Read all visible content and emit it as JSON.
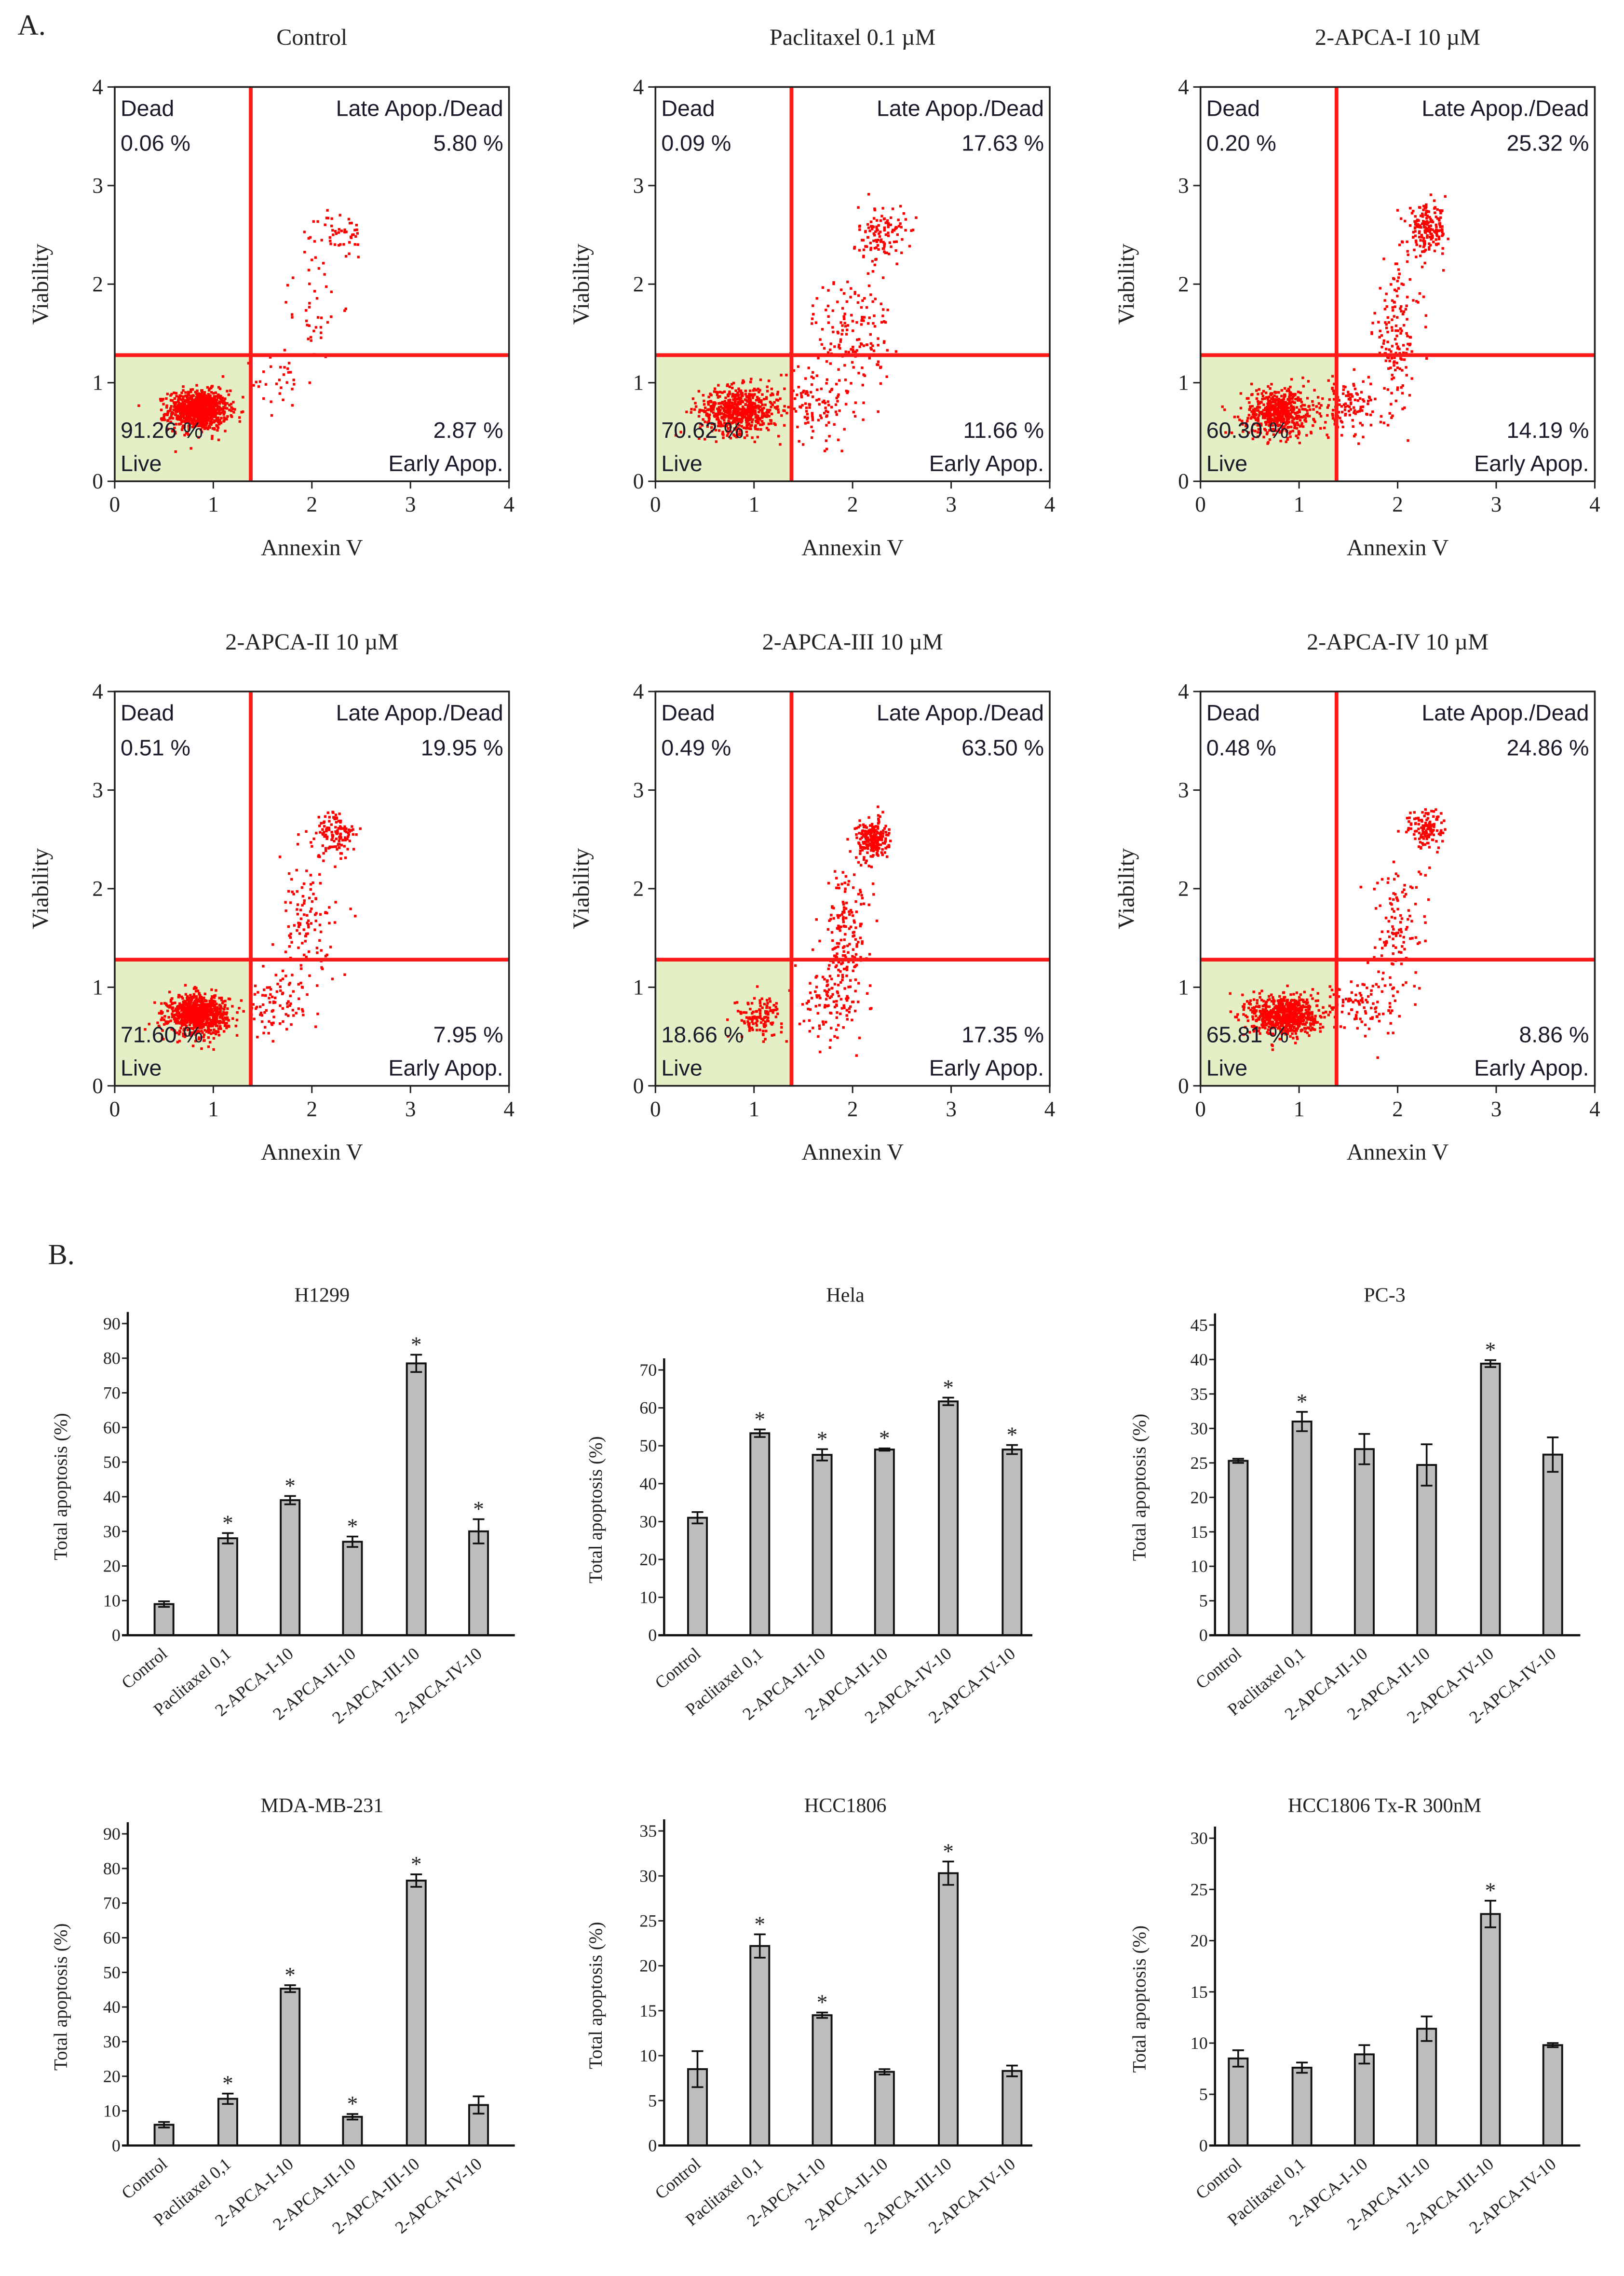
{
  "figure": {
    "panel_a_label": "A.",
    "panel_b_label": "B."
  },
  "chart_data": [
    {
      "type": "scatter",
      "title": "Control",
      "xlabel": "Annexin V",
      "ylabel": "Viability",
      "xlim": [
        0,
        4
      ],
      "ylim": [
        0,
        4
      ],
      "xticks": [
        0,
        1,
        2,
        3,
        4
      ],
      "yticks": [
        0,
        1,
        2,
        3,
        4
      ],
      "gate": {
        "x": 1.38,
        "y": 1.28
      },
      "point_color": "#ff0000",
      "live_fill": "#e4efc6",
      "quadrants": {
        "ul": {
          "label": "Dead",
          "value": "0.06 %"
        },
        "ur": {
          "label": "Late Apop./Dead",
          "value": "5.80 %"
        },
        "ll": {
          "label": "Live",
          "value": "91.26 %"
        },
        "lr": {
          "label": "Early Apop.",
          "value": "2.87 %"
        }
      },
      "clusters": [
        {
          "cx": 0.85,
          "cy": 0.72,
          "sx": 0.15,
          "sy": 0.1,
          "n": 900
        },
        {
          "cx": 1.7,
          "cy": 1.0,
          "sx": 0.15,
          "sy": 0.15,
          "n": 30
        },
        {
          "cx": 2.0,
          "cy": 1.8,
          "sx": 0.15,
          "sy": 0.3,
          "n": 40
        },
        {
          "cx": 2.3,
          "cy": 2.5,
          "sx": 0.12,
          "sy": 0.12,
          "n": 50
        }
      ]
    },
    {
      "type": "scatter",
      "title": "Paclitaxel 0.1 µM",
      "xlabel": "Annexin V",
      "ylabel": "Viability",
      "xlim": [
        0,
        4
      ],
      "ylim": [
        0,
        4
      ],
      "xticks": [
        0,
        1,
        2,
        3,
        4
      ],
      "yticks": [
        0,
        1,
        2,
        3,
        4
      ],
      "gate": {
        "x": 1.38,
        "y": 1.28
      },
      "point_color": "#ff0000",
      "live_fill": "#e4efc6",
      "quadrants": {
        "ul": {
          "label": "Dead",
          "value": "0.09 %"
        },
        "ur": {
          "label": "Late Apop./Dead",
          "value": "17.63 %"
        },
        "ll": {
          "label": "Live",
          "value": "70.62 %"
        },
        "lr": {
          "label": "Early Apop.",
          "value": "11.66 %"
        }
      },
      "clusters": [
        {
          "cx": 0.85,
          "cy": 0.72,
          "sx": 0.2,
          "sy": 0.12,
          "n": 600
        },
        {
          "cx": 1.6,
          "cy": 0.8,
          "sx": 0.2,
          "sy": 0.2,
          "n": 120
        },
        {
          "cx": 2.0,
          "cy": 1.5,
          "sx": 0.2,
          "sy": 0.3,
          "n": 150
        },
        {
          "cx": 2.3,
          "cy": 2.5,
          "sx": 0.12,
          "sy": 0.15,
          "n": 120
        }
      ]
    },
    {
      "type": "scatter",
      "title": "2-APCA-I 10 µM",
      "xlabel": "Annexin V",
      "ylabel": "Viability",
      "xlim": [
        0,
        4
      ],
      "ylim": [
        0,
        4
      ],
      "xticks": [
        0,
        1,
        2,
        3,
        4
      ],
      "yticks": [
        0,
        1,
        2,
        3,
        4
      ],
      "gate": {
        "x": 1.38,
        "y": 1.28
      },
      "point_color": "#ff0000",
      "live_fill": "#e4efc6",
      "quadrants": {
        "ul": {
          "label": "Dead",
          "value": "0.20 %"
        },
        "ur": {
          "label": "Late Apop./Dead",
          "value": "25.32 %"
        },
        "ll": {
          "label": "Live",
          "value": "60.30 %"
        },
        "lr": {
          "label": "Early Apop.",
          "value": "14.19 %"
        }
      },
      "clusters": [
        {
          "cx": 0.8,
          "cy": 0.7,
          "sx": 0.18,
          "sy": 0.12,
          "n": 550
        },
        {
          "cx": 1.5,
          "cy": 0.75,
          "sx": 0.2,
          "sy": 0.15,
          "n": 120
        },
        {
          "cx": 2.0,
          "cy": 1.5,
          "sx": 0.12,
          "sy": 0.35,
          "n": 150
        },
        {
          "cx": 2.3,
          "cy": 2.55,
          "sx": 0.1,
          "sy": 0.12,
          "n": 180
        }
      ]
    },
    {
      "type": "scatter",
      "title": "2-APCA-II 10 µM",
      "xlabel": "Annexin V",
      "ylabel": "Viability",
      "xlim": [
        0,
        4
      ],
      "ylim": [
        0,
        4
      ],
      "xticks": [
        0,
        1,
        2,
        3,
        4
      ],
      "yticks": [
        0,
        1,
        2,
        3,
        4
      ],
      "gate": {
        "x": 1.38,
        "y": 1.28
      },
      "point_color": "#ff0000",
      "live_fill": "#e4efc6",
      "quadrants": {
        "ul": {
          "label": "Dead",
          "value": "0.51 %"
        },
        "ur": {
          "label": "Late Apop./Dead",
          "value": "19.95 %"
        },
        "ll": {
          "label": "Live",
          "value": "71.60 %"
        },
        "lr": {
          "label": "Early Apop.",
          "value": "7.95 %"
        }
      },
      "clusters": [
        {
          "cx": 0.85,
          "cy": 0.72,
          "sx": 0.15,
          "sy": 0.1,
          "n": 800
        },
        {
          "cx": 1.6,
          "cy": 0.8,
          "sx": 0.15,
          "sy": 0.15,
          "n": 80
        },
        {
          "cx": 1.95,
          "cy": 1.6,
          "sx": 0.15,
          "sy": 0.35,
          "n": 120
        },
        {
          "cx": 2.25,
          "cy": 2.55,
          "sx": 0.1,
          "sy": 0.12,
          "n": 120
        }
      ]
    },
    {
      "type": "scatter",
      "title": "2-APCA-III 10 µM",
      "xlabel": "Annexin V",
      "ylabel": "Viability",
      "xlim": [
        0,
        4
      ],
      "ylim": [
        0,
        4
      ],
      "xticks": [
        0,
        1,
        2,
        3,
        4
      ],
      "yticks": [
        0,
        1,
        2,
        3,
        4
      ],
      "gate": {
        "x": 1.38,
        "y": 1.28
      },
      "point_color": "#ff0000",
      "live_fill": "#e4efc6",
      "quadrants": {
        "ul": {
          "label": "Dead",
          "value": "0.49 %"
        },
        "ur": {
          "label": "Late Apop./Dead",
          "value": "63.50 %"
        },
        "ll": {
          "label": "Live",
          "value": "18.66 %"
        },
        "lr": {
          "label": "Early Apop.",
          "value": "17.35 %"
        }
      },
      "clusters": [
        {
          "cx": 1.05,
          "cy": 0.7,
          "sx": 0.12,
          "sy": 0.1,
          "n": 120
        },
        {
          "cx": 1.8,
          "cy": 0.9,
          "sx": 0.15,
          "sy": 0.2,
          "n": 120
        },
        {
          "cx": 1.95,
          "cy": 1.6,
          "sx": 0.12,
          "sy": 0.3,
          "n": 150
        },
        {
          "cx": 2.2,
          "cy": 2.5,
          "sx": 0.08,
          "sy": 0.1,
          "n": 220
        }
      ]
    },
    {
      "type": "scatter",
      "title": "2-APCA-IV 10 µM",
      "xlabel": "Annexin V",
      "ylabel": "Viability",
      "xlim": [
        0,
        4
      ],
      "ylim": [
        0,
        4
      ],
      "xticks": [
        0,
        1,
        2,
        3,
        4
      ],
      "yticks": [
        0,
        1,
        2,
        3,
        4
      ],
      "gate": {
        "x": 1.38,
        "y": 1.28
      },
      "point_color": "#ff0000",
      "live_fill": "#e4efc6",
      "quadrants": {
        "ul": {
          "label": "Dead",
          "value": "0.48 %"
        },
        "ur": {
          "label": "Late Apop./Dead",
          "value": "24.86 %"
        },
        "ll": {
          "label": "Live",
          "value": "65.81 %"
        },
        "lr": {
          "label": "Early Apop.",
          "value": "8.86 %"
        }
      },
      "clusters": [
        {
          "cx": 0.85,
          "cy": 0.72,
          "sx": 0.17,
          "sy": 0.1,
          "n": 700
        },
        {
          "cx": 1.6,
          "cy": 0.8,
          "sx": 0.2,
          "sy": 0.15,
          "n": 100
        },
        {
          "cx": 2.0,
          "cy": 1.6,
          "sx": 0.15,
          "sy": 0.35,
          "n": 120
        },
        {
          "cx": 2.3,
          "cy": 2.6,
          "sx": 0.1,
          "sy": 0.1,
          "n": 120
        }
      ]
    },
    {
      "type": "bar",
      "title": "H1299",
      "ylabel": "Total apoptosis (%)",
      "ylim": [
        0,
        90
      ],
      "yticks": [
        0,
        10,
        20,
        30,
        40,
        50,
        60,
        70,
        80,
        90
      ],
      "bar_color": "#bdbdbd",
      "categories": [
        "Control",
        "Paclitaxel 0,1",
        "2-APCA-I-10",
        "2-APCA-II-10",
        "2-APCA-III-10",
        "2-APCA-IV-10"
      ],
      "values": [
        9,
        28,
        39,
        27,
        78.5,
        30
      ],
      "errors": [
        0.8,
        1.5,
        1.2,
        1.5,
        2.5,
        3.5
      ],
      "significant": [
        false,
        true,
        true,
        true,
        true,
        true
      ],
      "significance_mark": "*"
    },
    {
      "type": "bar",
      "title": "Hela",
      "ylabel": "Total apoptosis (%)",
      "ylim": [
        0,
        70
      ],
      "yticks": [
        0,
        10,
        20,
        30,
        40,
        50,
        60,
        70
      ],
      "bar_color": "#bdbdbd",
      "categories": [
        "Control",
        "Paclitaxel 0,1",
        "2-APCA-II-10",
        "2-APCA-II-10",
        "2-APCA-IV-10",
        "2-APCA-IV-10"
      ],
      "values": [
        31,
        53.3,
        47.6,
        49,
        61.7,
        49
      ],
      "errors": [
        1.5,
        1,
        1.5,
        0.3,
        1,
        1.2
      ],
      "significant": [
        false,
        true,
        true,
        true,
        true,
        true
      ],
      "significance_mark": "*"
    },
    {
      "type": "bar",
      "title": "PC-3",
      "ylabel": "Total apoptosis (%)",
      "ylim": [
        0,
        45
      ],
      "yticks": [
        0,
        5,
        10,
        15,
        20,
        25,
        30,
        35,
        40,
        45
      ],
      "bar_color": "#bdbdbd",
      "categories": [
        "Control",
        "Paclitaxel 0,1",
        "2-APCA-II-10",
        "2-APCA-II-10",
        "2-APCA-IV-10",
        "2-APCA-IV-10"
      ],
      "values": [
        25.3,
        31,
        27,
        24.7,
        39.4,
        26.2
      ],
      "errors": [
        0.3,
        1.4,
        2.2,
        3,
        0.5,
        2.5
      ],
      "significant": [
        false,
        true,
        false,
        false,
        true,
        false
      ],
      "significance_mark": "*"
    },
    {
      "type": "bar",
      "title": "MDA-MB-231",
      "ylabel": "Total apoptosis (%)",
      "ylim": [
        0,
        90
      ],
      "yticks": [
        0,
        10,
        20,
        30,
        40,
        50,
        60,
        70,
        80,
        90
      ],
      "bar_color": "#bdbdbd",
      "categories": [
        "Control",
        "Paclitaxel 0,1",
        "2-APCA-I-10",
        "2-APCA-II-10",
        "2-APCA-III-10",
        "2-APCA-IV-10"
      ],
      "values": [
        6,
        13.5,
        45.3,
        8.3,
        76.5,
        11.7
      ],
      "errors": [
        0.8,
        1.5,
        1,
        0.8,
        1.8,
        2.5
      ],
      "significant": [
        false,
        true,
        true,
        true,
        true,
        false
      ],
      "significance_mark": "*"
    },
    {
      "type": "bar",
      "title": "HCC1806",
      "ylabel": "Total apoptosis (%)",
      "ylim": [
        0,
        35
      ],
      "yticks": [
        0,
        5,
        10,
        15,
        20,
        25,
        30,
        35
      ],
      "bar_color": "#bdbdbd",
      "categories": [
        "Control",
        "Paclitaxel 0,1",
        "2-APCA-I-10",
        "2-APCA-II-10",
        "2-APCA-III-10",
        "2-APCA-IV-10"
      ],
      "values": [
        8.5,
        22.2,
        14.5,
        8.2,
        30.3,
        8.3
      ],
      "errors": [
        2,
        1.3,
        0.3,
        0.3,
        1.3,
        0.6
      ],
      "significant": [
        false,
        true,
        true,
        false,
        true,
        false
      ],
      "significance_mark": "*"
    },
    {
      "type": "bar",
      "title": "HCC1806 Tx-R 300nM",
      "ylabel": "Total apoptosis (%)",
      "ylim": [
        0,
        30
      ],
      "yticks": [
        0,
        5,
        10,
        15,
        20,
        25,
        30
      ],
      "bar_color": "#bdbdbd",
      "categories": [
        "Control",
        "Paclitaxel 0,1",
        "2-APCA-I-10",
        "2-APCA-II-10",
        "2-APCA-III-10",
        "2-APCA-IV-10"
      ],
      "values": [
        8.5,
        7.6,
        8.9,
        11.4,
        22.6,
        9.8
      ],
      "errors": [
        0.8,
        0.5,
        0.9,
        1.2,
        1.3,
        0.2
      ],
      "significant": [
        false,
        false,
        false,
        false,
        true,
        false
      ],
      "significance_mark": "*"
    }
  ]
}
